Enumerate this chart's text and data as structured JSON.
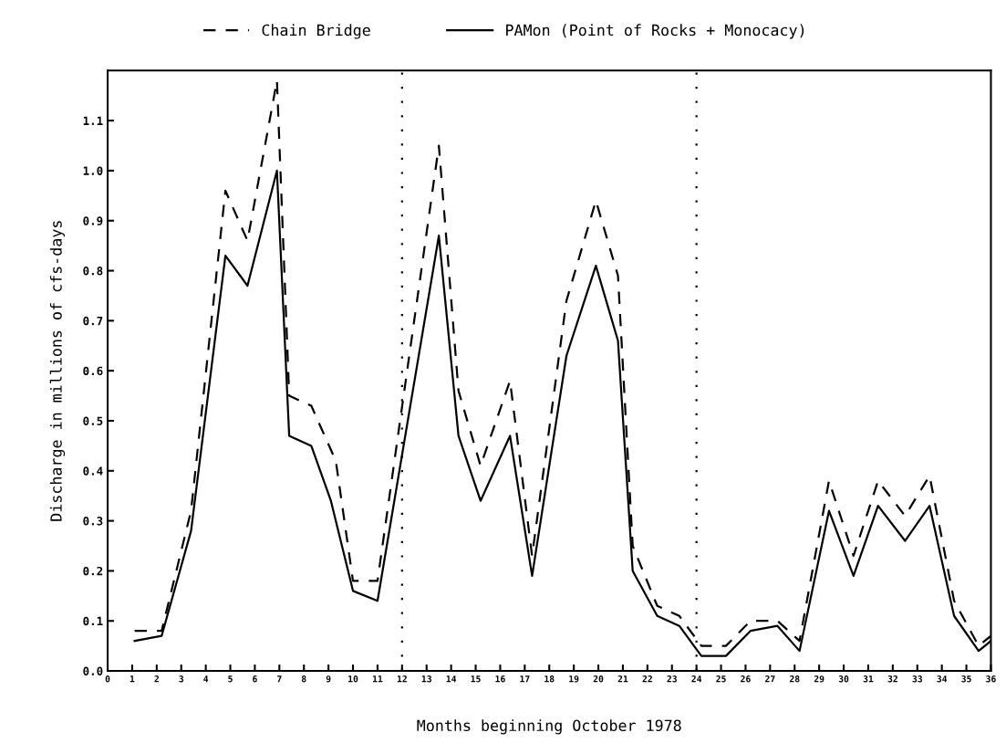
{
  "chart_data": {
    "type": "line",
    "xlabel": "Months beginning October 1978",
    "ylabel": "Discharge in millions of cfs-days",
    "xlim": [
      0,
      36
    ],
    "ylim": [
      0,
      1.2
    ],
    "xticks": [
      0,
      1,
      2,
      3,
      4,
      5,
      6,
      7,
      8,
      9,
      10,
      11,
      12,
      13,
      14,
      15,
      16,
      17,
      18,
      19,
      20,
      21,
      22,
      23,
      24,
      25,
      26,
      27,
      28,
      29,
      30,
      31,
      32,
      33,
      34,
      35,
      36
    ],
    "yticks": [
      {
        "value": 0,
        "label": "0.0"
      },
      {
        "value": 0.1,
        "label": "0.1"
      },
      {
        "value": 0.2,
        "label": "0.2"
      },
      {
        "value": 0.3,
        "label": "0.3"
      },
      {
        "value": 0.4,
        "label": "0.4"
      },
      {
        "value": 0.5,
        "label": "0.5"
      },
      {
        "value": 0.6,
        "label": "0.6"
      },
      {
        "value": 0.7,
        "label": "0.7"
      },
      {
        "value": 0.8,
        "label": "0.8"
      },
      {
        "value": 0.9,
        "label": "0.9"
      },
      {
        "value": 1.0,
        "label": "1.0"
      },
      {
        "value": 1.1,
        "label": "1.1"
      }
    ],
    "grid": false,
    "legend": "top",
    "ref_lines": [
      {
        "axis": "x",
        "value": 12,
        "line_style": "dotted",
        "color": "#000000"
      },
      {
        "axis": "x",
        "value": 24,
        "line_style": "dotted",
        "color": "#000000"
      }
    ],
    "series": [
      {
        "name": "Chain Bridge",
        "color": "#000000",
        "line_style": "dashed",
        "x": [
          1.1,
          2.2,
          3.4,
          4.8,
          5.7,
          6.9,
          7.4,
          8.3,
          9.3,
          10.0,
          11.0,
          13.5,
          14.3,
          15.2,
          16.4,
          17.3,
          18.7,
          19.9,
          20.8,
          21.4,
          22.4,
          23.3,
          24.2,
          25.2,
          26.2,
          27.3,
          28.2,
          29.4,
          30.4,
          31.4,
          32.5,
          33.5,
          34.5,
          35.5,
          36
        ],
        "values": [
          0.08,
          0.08,
          0.32,
          0.96,
          0.86,
          1.18,
          0.55,
          0.53,
          0.42,
          0.18,
          0.18,
          1.05,
          0.56,
          0.41,
          0.58,
          0.23,
          0.74,
          0.94,
          0.79,
          0.25,
          0.13,
          0.11,
          0.05,
          0.05,
          0.1,
          0.1,
          0.06,
          0.38,
          0.23,
          0.38,
          0.31,
          0.39,
          0.14,
          0.05,
          0.07
        ]
      },
      {
        "name": "PAMon (Point of Rocks + Monocacy)",
        "color": "#000000",
        "line_style": "solid",
        "x": [
          1.1,
          2.2,
          3.4,
          4.8,
          5.7,
          6.9,
          7.4,
          8.3,
          9.1,
          10.0,
          11.0,
          13.5,
          14.3,
          15.2,
          16.4,
          17.3,
          18.7,
          19.9,
          20.8,
          21.4,
          22.4,
          23.3,
          24.2,
          25.2,
          26.2,
          27.3,
          28.2,
          29.4,
          30.4,
          31.4,
          32.5,
          33.5,
          34.5,
          35.5,
          36
        ],
        "values": [
          0.06,
          0.07,
          0.28,
          0.83,
          0.77,
          1.0,
          0.47,
          0.45,
          0.34,
          0.16,
          0.14,
          0.87,
          0.47,
          0.34,
          0.47,
          0.19,
          0.63,
          0.81,
          0.66,
          0.2,
          0.11,
          0.09,
          0.03,
          0.03,
          0.08,
          0.09,
          0.04,
          0.32,
          0.19,
          0.33,
          0.26,
          0.33,
          0.11,
          0.04,
          0.06
        ]
      }
    ]
  }
}
